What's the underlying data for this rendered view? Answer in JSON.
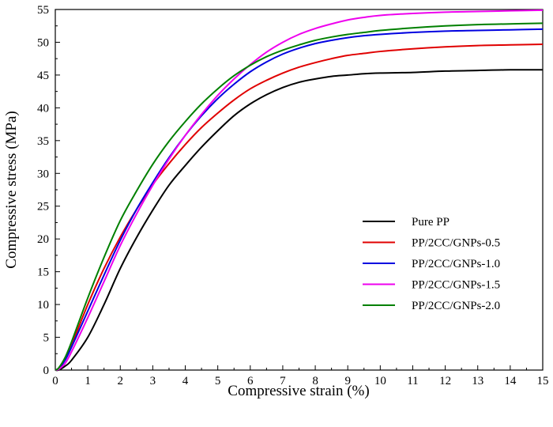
{
  "chart_data": {
    "type": "line",
    "title": "",
    "xlabel": "Compressive strain (%)",
    "ylabel": "Compressive stress (MPa)",
    "xlim": [
      0,
      15
    ],
    "ylim": [
      0,
      55
    ],
    "x_ticks": [
      0,
      1,
      2,
      3,
      4,
      5,
      6,
      7,
      8,
      9,
      10,
      11,
      12,
      13,
      14,
      15
    ],
    "y_ticks": [
      0,
      5,
      10,
      15,
      20,
      25,
      30,
      35,
      40,
      45,
      50,
      55
    ],
    "grid": false,
    "legend_position": "center-right",
    "x": [
      0,
      0.1,
      0.3,
      0.5,
      1,
      1.5,
      2,
      2.5,
      3,
      3.5,
      4,
      4.5,
      5,
      5.5,
      6,
      6.5,
      7,
      7.5,
      8,
      8.5,
      9,
      9.5,
      10,
      11,
      12,
      13,
      14,
      15
    ],
    "series": [
      {
        "name": "Pure PP",
        "color": "#000000",
        "values": [
          0,
          0,
          0.6,
          1.5,
          5,
          10,
          15.5,
          20.2,
          24.4,
          28.2,
          31.2,
          34,
          36.5,
          38.8,
          40.6,
          42,
          43.1,
          43.9,
          44.4,
          44.8,
          45,
          45.2,
          45.3,
          45.4,
          45.6,
          45.7,
          45.8,
          45.8
        ]
      },
      {
        "name": "PP/2CC/GNPs-0.5",
        "color": "#e00000",
        "values": [
          0,
          0.2,
          1.6,
          3.8,
          10,
          15.5,
          20.3,
          24.5,
          28.3,
          31.5,
          34.4,
          37,
          39.2,
          41.2,
          42.9,
          44.2,
          45.3,
          46.2,
          46.9,
          47.5,
          48,
          48.3,
          48.6,
          49,
          49.3,
          49.5,
          49.6,
          49.7
        ]
      },
      {
        "name": "PP/2CC/GNPs-1.0",
        "color": "#0000e0",
        "values": [
          0,
          0.2,
          1.5,
          3.5,
          9,
          14.5,
          19.8,
          24.5,
          28.6,
          32.4,
          35.8,
          38.8,
          41.4,
          43.6,
          45.5,
          47,
          48.2,
          49.1,
          49.8,
          50.3,
          50.7,
          51,
          51.2,
          51.5,
          51.7,
          51.8,
          51.9,
          52
        ]
      },
      {
        "name": "PP/2CC/GNPs-1.5",
        "color": "#ee00ee",
        "values": [
          0,
          0.1,
          1,
          2.8,
          8,
          13.5,
          19,
          23.8,
          28.2,
          32.2,
          35.8,
          39,
          41.9,
          44.4,
          46.6,
          48.5,
          50,
          51.2,
          52.1,
          52.8,
          53.4,
          53.8,
          54.1,
          54.4,
          54.6,
          54.7,
          54.8,
          54.9
        ]
      },
      {
        "name": "PP/2CC/GNPs-2.0",
        "color": "#008000",
        "values": [
          0,
          0.3,
          1.9,
          4.3,
          11,
          17.2,
          22.8,
          27.3,
          31.4,
          34.9,
          37.9,
          40.6,
          42.9,
          44.9,
          46.5,
          47.8,
          48.8,
          49.6,
          50.3,
          50.8,
          51.2,
          51.5,
          51.8,
          52.2,
          52.5,
          52.7,
          52.8,
          52.9
        ]
      }
    ]
  }
}
